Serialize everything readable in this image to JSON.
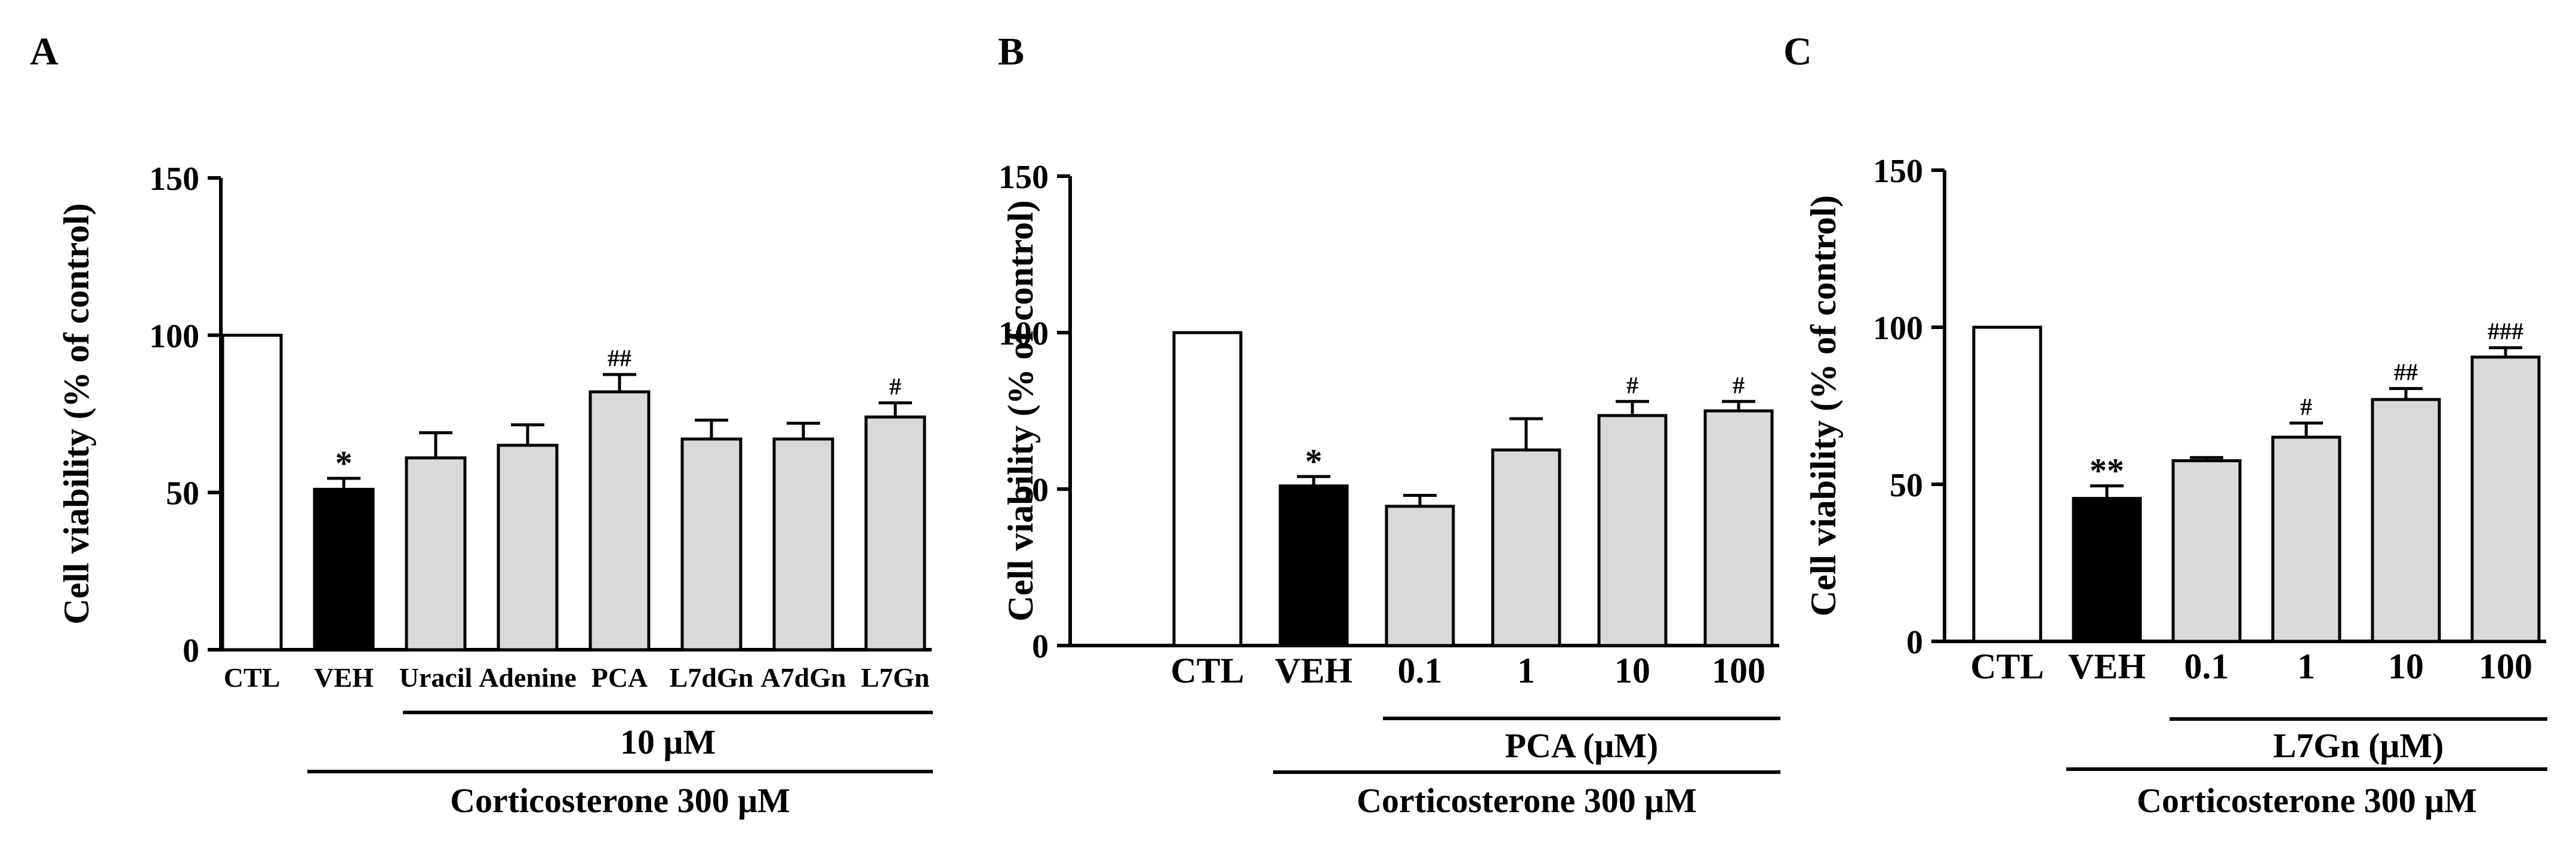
{
  "figure": {
    "panels": [
      "A",
      "B",
      "C"
    ]
  },
  "colors": {
    "ctl_fill": "#ffffff",
    "veh_fill": "#000000",
    "treatment_fill": "#d9d9d9",
    "stroke": "#000000"
  },
  "chart_data": [
    {
      "type": "bar",
      "panel": "A",
      "ylabel": "Cell viability (% of control)",
      "ylim": [
        0,
        150
      ],
      "yticks": [
        0,
        50,
        100,
        150
      ],
      "categories": [
        "CTL",
        "VEH",
        "Uracil",
        "Adenine",
        "PCA",
        "L7dGn",
        "A7dGn",
        "L7Gn"
      ],
      "values": [
        100,
        51,
        61,
        65,
        82,
        67,
        67,
        74
      ],
      "errors": [
        0,
        3.5,
        8,
        6.5,
        5.5,
        6,
        5,
        4.5
      ],
      "bar_colors": [
        "ctl",
        "veh",
        "treat",
        "treat",
        "treat",
        "treat",
        "treat",
        "treat"
      ],
      "annotations": [
        "",
        "*",
        "",
        "",
        "##",
        "",
        "",
        "#"
      ],
      "group_label": "10 μM",
      "group_range": [
        2,
        7
      ],
      "bottom_label": "Corticosterone 300 μM",
      "bottom_range": [
        1,
        7
      ]
    },
    {
      "type": "bar",
      "panel": "B",
      "ylabel": "Cell viability (% of control)",
      "ylim": [
        0,
        150
      ],
      "yticks": [
        0,
        50,
        100,
        150
      ],
      "categories": [
        "CTL",
        "VEH",
        "0.1",
        "1",
        "10",
        "100"
      ],
      "values": [
        100,
        51,
        44.5,
        62.5,
        73.5,
        75
      ],
      "errors": [
        0,
        3,
        3.5,
        10,
        4.5,
        3
      ],
      "bar_colors": [
        "ctl",
        "veh",
        "treat",
        "treat",
        "treat",
        "treat"
      ],
      "annotations": [
        "",
        "*",
        "",
        "",
        "#",
        "#"
      ],
      "group_label": "PCA (μM)",
      "group_range": [
        2,
        5
      ],
      "bottom_label": "Corticosterone 300 μM",
      "bottom_range": [
        1,
        5
      ]
    },
    {
      "type": "bar",
      "panel": "C",
      "ylabel": "Cell viability (% of control)",
      "ylim": [
        0,
        150
      ],
      "yticks": [
        0,
        50,
        100,
        150
      ],
      "categories": [
        "CTL",
        "VEH",
        "0.1",
        "1",
        "10",
        "100"
      ],
      "values": [
        100,
        45.5,
        57.5,
        65,
        77,
        90.5
      ],
      "errors": [
        0,
        4,
        1,
        4.5,
        3.5,
        3
      ],
      "bar_colors": [
        "ctl",
        "veh",
        "treat",
        "treat",
        "treat",
        "treat"
      ],
      "annotations": [
        "",
        "**",
        "",
        "#",
        "##",
        "###"
      ],
      "group_label": "L7Gn (μM)",
      "group_range": [
        2,
        5
      ],
      "bottom_label": "Corticosterone 300 μM",
      "bottom_range": [
        1,
        5
      ]
    }
  ]
}
